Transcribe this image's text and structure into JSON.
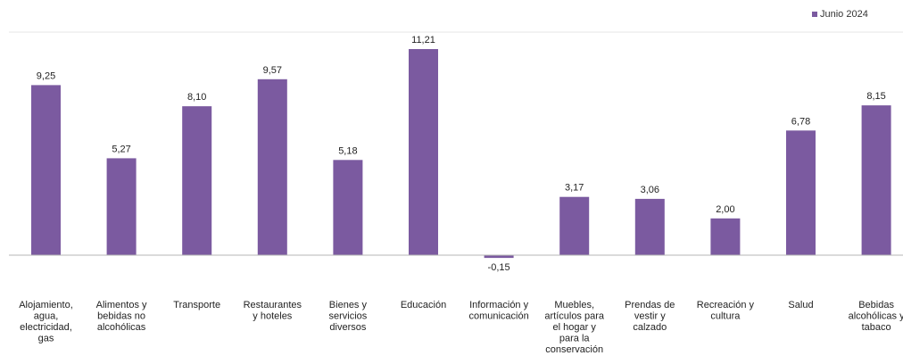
{
  "chart_data": {
    "type": "bar",
    "title": "",
    "xlabel": "",
    "ylabel": "",
    "legend": {
      "position": "top-right",
      "entries": [
        "Junio 2024"
      ]
    },
    "grid": false,
    "ylim": [
      -1.5,
      11.5
    ],
    "color": "#7b5aa0",
    "categories": [
      "Alojamiento, agua, electricidad, gas",
      "Alimentos y bebidas no alcohólicas",
      "Transporte",
      "Restaurantes y hoteles",
      "Bienes y servicios diversos",
      "Educación",
      "Información y comunicación",
      "Muebles, artículos para el hogar y para la conservación",
      "Prendas de vestir y calzado",
      "Recreación y cultura",
      "Salud",
      "Bebidas alcohólicas y tabaco"
    ],
    "category_lines": [
      [
        "Alojamiento,",
        "agua,",
        "electricidad,",
        "gas"
      ],
      [
        "Alimentos y",
        "bebidas no",
        "alcohólicas"
      ],
      [
        "Transporte"
      ],
      [
        "Restaurantes",
        "y hoteles"
      ],
      [
        "Bienes y",
        "servicios",
        "diversos"
      ],
      [
        "Educación"
      ],
      [
        "Información y",
        "comunicación"
      ],
      [
        "Muebles,",
        "artículos para",
        "el hogar y",
        "para la",
        "conservación"
      ],
      [
        "Prendas de",
        "vestir y",
        "calzado"
      ],
      [
        "Recreación y",
        "cultura"
      ],
      [
        "Salud"
      ],
      [
        "Bebidas",
        "alcohólicas y",
        "tabaco"
      ]
    ],
    "series": [
      {
        "name": "Junio 2024",
        "values": [
          9.25,
          5.27,
          8.1,
          9.57,
          5.18,
          11.21,
          -0.15,
          3.17,
          3.06,
          2.0,
          6.78,
          8.15
        ],
        "labels": [
          "9,25",
          "5,27",
          "8,10",
          "9,57",
          "5,18",
          "11,21",
          "-0,15",
          "3,17",
          "3,06",
          "2,00",
          "6,78",
          "8,15"
        ]
      }
    ]
  }
}
